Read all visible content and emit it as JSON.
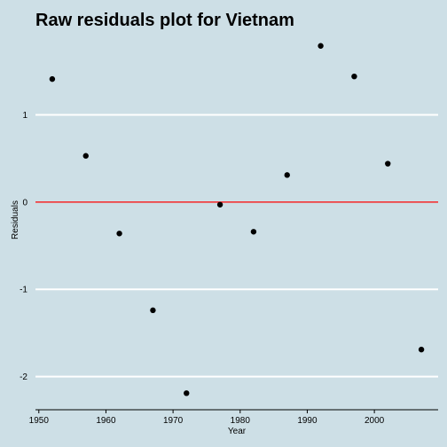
{
  "chart_data": {
    "type": "scatter",
    "title": "Raw residuals plot for Vietnam",
    "xlabel": "Year",
    "ylabel": "Residuals",
    "xlim": [
      1949.5,
      2009.5
    ],
    "ylim": [
      -2.38,
      1.95
    ],
    "x_ticks": [
      1950,
      1960,
      1970,
      1980,
      1990,
      2000
    ],
    "y_ticks": [
      -2,
      -1,
      0,
      1
    ],
    "grid": "horizontal",
    "reference_line": {
      "y": 0,
      "color": "#ff0000"
    },
    "background": "#cddfe6",
    "point_color": "#000000",
    "points": [
      {
        "x": 1952,
        "y": 1.41
      },
      {
        "x": 1957,
        "y": 0.53
      },
      {
        "x": 1962,
        "y": -0.36
      },
      {
        "x": 1967,
        "y": -1.24
      },
      {
        "x": 1972,
        "y": -2.19
      },
      {
        "x": 1977,
        "y": -0.03
      },
      {
        "x": 1982,
        "y": -0.34
      },
      {
        "x": 1987,
        "y": 0.31
      },
      {
        "x": 1992,
        "y": 1.79
      },
      {
        "x": 1997,
        "y": 1.44
      },
      {
        "x": 2002,
        "y": 0.44
      },
      {
        "x": 2007,
        "y": -1.69
      }
    ]
  }
}
